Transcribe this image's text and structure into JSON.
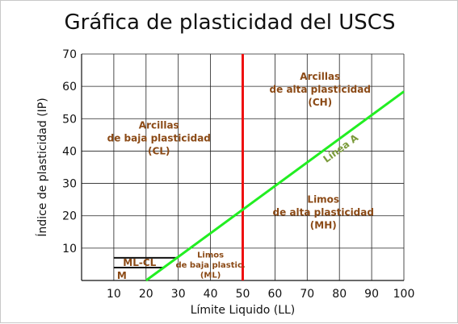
{
  "chart_data": {
    "type": "line",
    "title": "Gráfica de plasticidad del USCS",
    "xlabel": "Límite Liquido (LL)",
    "ylabel": "Índice de plasticidad (IP)",
    "xlim": [
      0,
      100
    ],
    "ylim": [
      0,
      70
    ],
    "x_ticks": [
      10,
      20,
      30,
      40,
      50,
      60,
      70,
      80,
      90,
      100
    ],
    "y_ticks": [
      10,
      20,
      30,
      40,
      50,
      60,
      70
    ],
    "grid": true,
    "series": [
      {
        "name": "Línea A",
        "color": "#22ee22",
        "x": [
          20,
          100
        ],
        "y": [
          0,
          58.4
        ]
      }
    ],
    "reference_lines": [
      {
        "type": "vertical",
        "x": 50,
        "color": "#ee1111"
      },
      {
        "type": "horizontal",
        "y": 7,
        "x_range": [
          10,
          29.6
        ],
        "color": "#111111"
      },
      {
        "type": "horizontal",
        "y": 4,
        "x_range": [
          10,
          25.5
        ],
        "color": "#111111"
      }
    ],
    "annotations": [
      {
        "lines": [
          "Arcillas",
          "de alta plasticidad",
          "(CH)"
        ],
        "x": 74,
        "y": 59
      },
      {
        "lines": [
          "Arcillas",
          "de baja plasticidad",
          "(CL)"
        ],
        "x": 24,
        "y": 44
      },
      {
        "lines": [
          "Limos",
          "de alta plasticidad",
          "(MH)"
        ],
        "x": 75,
        "y": 21
      },
      {
        "lines": [
          "Limos",
          "de baja plastic.",
          "(ML)"
        ],
        "x": 40,
        "y": 5
      },
      {
        "lines": [
          "ML-CL"
        ],
        "x": 18,
        "y": 5.5
      },
      {
        "lines": [
          "M"
        ],
        "x": 12.5,
        "y": 1.5
      },
      {
        "lines": [
          "Línea A"
        ],
        "x": 81,
        "y": 40
      }
    ]
  }
}
